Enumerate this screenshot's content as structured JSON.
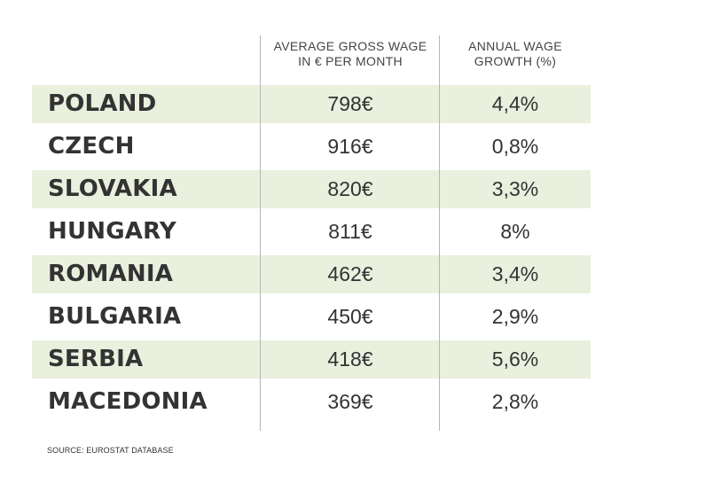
{
  "chart_data": {
    "type": "table",
    "columns": [
      {
        "name": "wage",
        "label_lines": [
          "AVERAGE GROSS WAGE",
          "IN € PER MONTH"
        ]
      },
      {
        "name": "growth",
        "label_lines": [
          "ANNUAL WAGE",
          "GROWTH (%)"
        ]
      }
    ],
    "rows": [
      {
        "country": "POLAND",
        "wage": "798€",
        "growth": "4,4%"
      },
      {
        "country": "CZECH",
        "wage": "916€",
        "growth": "0,8%"
      },
      {
        "country": "SLOVAKIA",
        "wage": "820€",
        "growth": "3,3%"
      },
      {
        "country": "HUNGARY",
        "wage": "811€",
        "growth": "8%"
      },
      {
        "country": "ROMANIA",
        "wage": "462€",
        "growth": "3,4%"
      },
      {
        "country": "BULGARIA",
        "wage": "450€",
        "growth": "2,9%"
      },
      {
        "country": "SERBIA",
        "wage": "418€",
        "growth": "5,6%"
      },
      {
        "country": "MACEDONIA",
        "wage": "369€",
        "growth": "2,8%"
      }
    ],
    "source": "SOURCE: EUROSTAT DATABASE"
  },
  "colors": {
    "row_shade": "#e9f0de",
    "text": "#333333",
    "divider": "#b5b5b5"
  }
}
